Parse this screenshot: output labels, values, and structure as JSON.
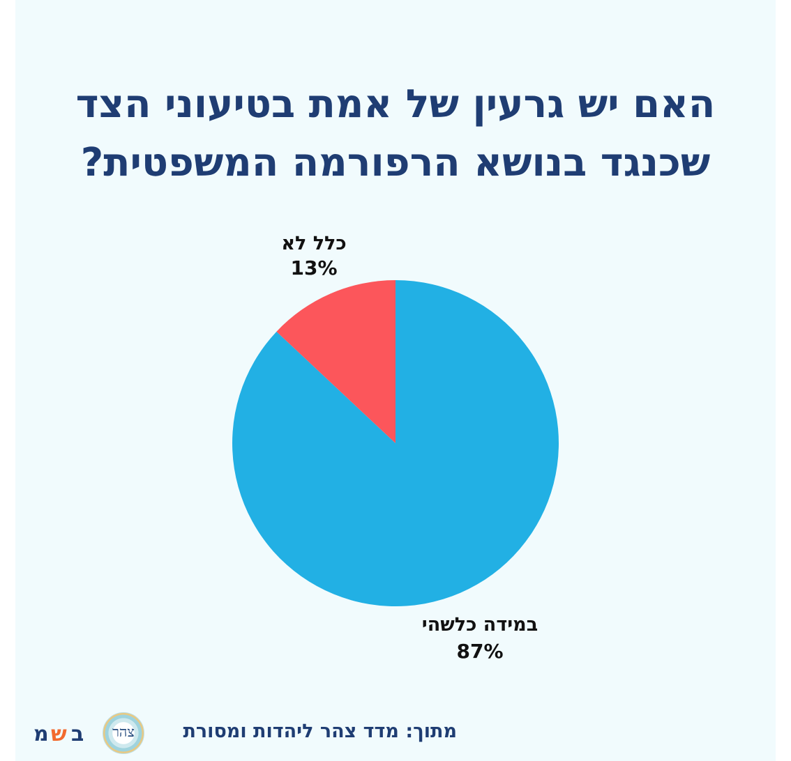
{
  "title_lines": [
    "האם יש גרעין של אמת בטיעוני הצד",
    "שכנגד בנושא הרפורמה המשפטית?"
  ],
  "colors": {
    "background": "#f1fbfd",
    "title": "#1f3d73",
    "slice_1": "#22b0e4",
    "slice_2": "#fc565b",
    "label": "#111111"
  },
  "chart_data": {
    "type": "pie",
    "title": "האם יש גרעין של אמת בטיעוני הצד שכנגד בנושא הרפורמה המשפטית?",
    "slices": [
      {
        "label": "במידה כלשהי",
        "value": 87,
        "value_label": "87%",
        "color": "#22b0e4"
      },
      {
        "label": "כלל לא",
        "value": 13,
        "value_label": "13%",
        "color": "#fc565b"
      }
    ],
    "start_angle": "12 o'clock",
    "direction": "clockwise",
    "legend": "none"
  },
  "footer": {
    "source": "מתוך: מדד צהר ליהדות ומסורת",
    "logo_text": "צהר",
    "brand_letters": [
      "מ",
      "ש",
      "ב"
    ]
  }
}
